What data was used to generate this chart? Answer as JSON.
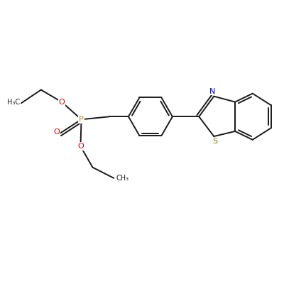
{
  "bg": "#ffffff",
  "bc": "#1a1a1a",
  "col_P": "#b8860b",
  "col_O": "#cc0000",
  "col_N": "#0000cc",
  "col_S": "#808000",
  "col_C": "#1a1a1a",
  "lw": 1.4,
  "fs": 8.0,
  "fs_sm": 7.0,
  "xlim": [
    0,
    10
  ],
  "ylim": [
    0,
    10
  ]
}
